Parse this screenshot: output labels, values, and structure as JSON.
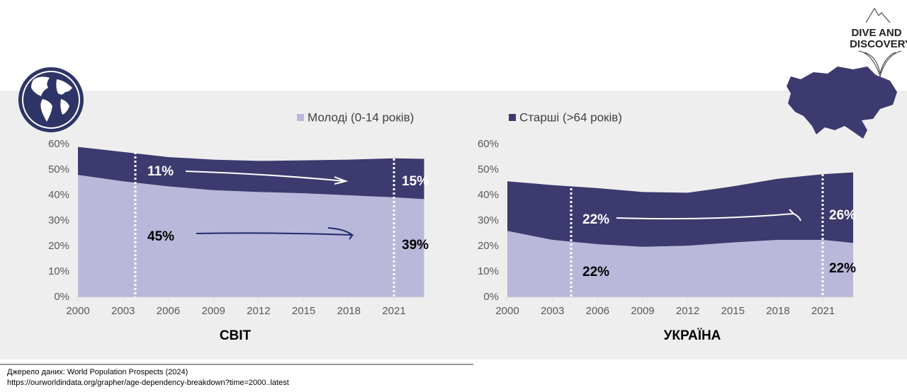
{
  "chart_data": [
    {
      "type": "area",
      "title": "СВІТ",
      "x": [
        2000,
        2003,
        2006,
        2009,
        2012,
        2015,
        2018,
        2021,
        2023
      ],
      "series": [
        {
          "name": "Молоді (0-14 років)",
          "color": "#b9b8da",
          "values": [
            48,
            45.5,
            43.5,
            42,
            41.3,
            40.8,
            40,
            39.2,
            38.5
          ]
        },
        {
          "name": "Старші (>64 років)",
          "color": "#3c3a6e",
          "values": [
            11,
            11.5,
            11.5,
            12,
            12.2,
            12.9,
            14,
            15.3,
            15.8
          ]
        }
      ],
      "stacked": true,
      "xlim": [
        2000,
        2023
      ],
      "xticks": [
        2000,
        2003,
        2006,
        2009,
        2012,
        2015,
        2018,
        2021
      ],
      "ylim": [
        0,
        60
      ],
      "yticks": [
        {
          "value": 0,
          "label": "0%"
        },
        {
          "value": 10,
          "label": "10%"
        },
        {
          "value": 20,
          "label": "20%"
        },
        {
          "value": 30,
          "label": "30%"
        },
        {
          "value": 40,
          "label": "40%"
        },
        {
          "value": 50,
          "label": "50%"
        },
        {
          "value": 60,
          "label": "60%"
        }
      ],
      "annotations": [
        "11%",
        "45%",
        "15%",
        "39%"
      ]
    },
    {
      "type": "area",
      "title": "УКРАЇНА",
      "x": [
        2000,
        2003,
        2006,
        2009,
        2012,
        2015,
        2018,
        2021,
        2023
      ],
      "series": [
        {
          "color": "#b9b8da",
          "values": [
            26,
            22.5,
            20.8,
            19.8,
            20.2,
            21.5,
            22.5,
            22.5,
            21.3
          ]
        },
        {
          "color": "#3c3a6e",
          "values": [
            19.5,
            21.5,
            22,
            21.5,
            20.8,
            22,
            24,
            25.8,
            27.7
          ]
        }
      ],
      "stacked": true,
      "xlim": [
        2000,
        2023
      ],
      "xticks": [
        2000,
        2003,
        2006,
        2009,
        2012,
        2015,
        2018,
        2021
      ],
      "ylim": [
        0,
        60
      ],
      "yticks": [
        {
          "value": 0,
          "label": "0%"
        },
        {
          "value": 10,
          "label": "10%"
        },
        {
          "value": 20,
          "label": "20%"
        },
        {
          "value": 30,
          "label": "30%"
        },
        {
          "value": 40,
          "label": "40%"
        },
        {
          "value": 50,
          "label": "50%"
        },
        {
          "value": 60,
          "label": "60%"
        }
      ],
      "annotations": [
        "22%",
        "22%",
        "26%",
        "22%"
      ]
    }
  ],
  "logo": [
    "DIVE AND",
    "DISCOVERY"
  ],
  "source": [
    "Джерело даних: World Population Prospects (2024)",
    "https://ourworldindata.org/grapher/age-dependency-breakdown?time=2000..latest"
  ]
}
